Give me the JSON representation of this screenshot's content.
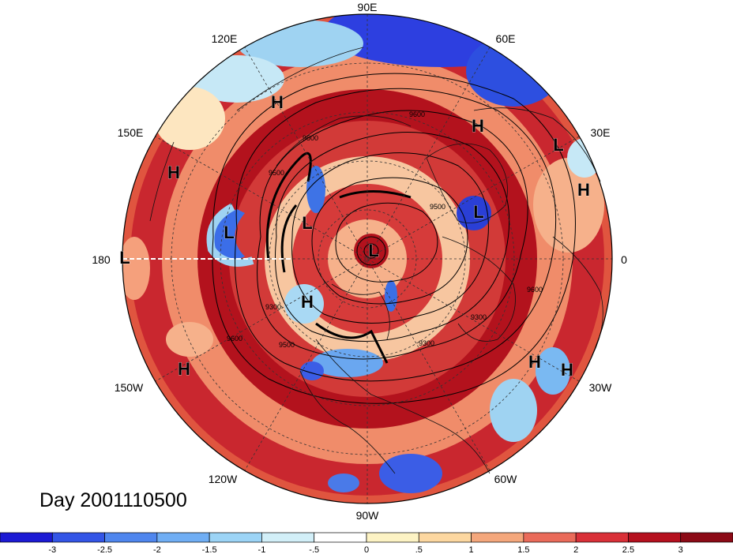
{
  "title": "Day 2001110500",
  "longitude_labels": {
    "lon_90e": "90E",
    "lon_60e": "60E",
    "lon_30e": "30E",
    "lon_0": "0",
    "lon_30w": "30W",
    "lon_60w": "60W",
    "lon_90w": "90W",
    "lon_120w": "120W",
    "lon_150w": "150W",
    "lon_180": "180",
    "lon_150e": "150E",
    "lon_120e": "120E"
  },
  "pressure_centers": [
    "H",
    "H",
    "L",
    "H",
    "H",
    "L",
    "L",
    "L",
    "L",
    "L",
    "H",
    "H",
    "H",
    "H"
  ],
  "contour_labels": [
    "9600",
    "9500",
    "9500",
    "9300",
    "9300",
    "9600",
    "9500",
    "9300",
    "9600",
    "9500"
  ],
  "colorbar": {
    "ticks": [
      "-3",
      "-2.5",
      "-2",
      "-1.5",
      "-1",
      "-.5",
      "0",
      ".5",
      "1",
      "1.5",
      "2",
      "2.5",
      "3"
    ],
    "colors": [
      "#1c1ad4",
      "#3355e6",
      "#4f86ee",
      "#70aef4",
      "#9cd4f6",
      "#d2eff8",
      "#ffffff",
      "#fdf3c4",
      "#fcd7a0",
      "#f4a77c",
      "#ea6b5a",
      "#d93038",
      "#b5101e",
      "#8c0a16"
    ]
  },
  "palette": {
    "deep_red": "#a8121c",
    "red": "#d7343a",
    "blue": "#2d4fe0",
    "light_blue": "#9fd3f2"
  }
}
